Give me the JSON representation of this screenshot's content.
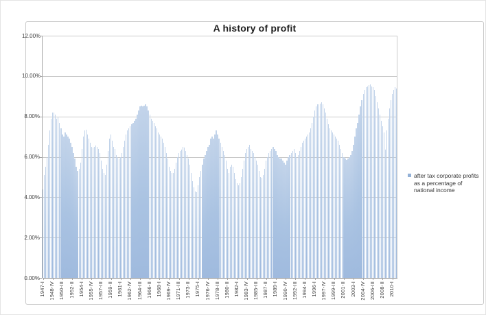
{
  "chart_data": {
    "type": "bar",
    "title": "A history of profit",
    "legend": {
      "label": "after tax corporate profits as a percentage of national income",
      "position": "right"
    },
    "y_axis": {
      "min": 0,
      "max": 12,
      "step": 2,
      "tick_labels": [
        "0.00%",
        "2.00%",
        "4.00%",
        "6.00%",
        "8.00%",
        "10.00%",
        "12.00%"
      ]
    },
    "x_axis": {
      "label_rotation": 90,
      "tick_every_n_bars": 7,
      "tick_labels": [
        "1947-I",
        "1948-IV",
        "1950-III",
        "1952-II",
        "1954-I",
        "1955-IV",
        "1957-III",
        "1959-II",
        "1961-I",
        "1962-IV",
        "1964-III",
        "1966-II",
        "1968-I",
        "1969-IV",
        "1971-III",
        "1973-II",
        "1975-I",
        "1976-IV",
        "1978-III",
        "1980-II",
        "1982-I",
        "1983-IV",
        "1985-III",
        "1987-II",
        "1989-I",
        "1990-IV",
        "1992-III",
        "1994-II",
        "1996-I",
        "1997-IV",
        "1999-III",
        "2001-II",
        "2003-I",
        "2004-IV",
        "2006-III",
        "2008-II",
        "2010-I"
      ]
    },
    "grid": true,
    "ylim": [
      0,
      12
    ],
    "series": [
      {
        "name": "after tax corporate profits as a percentage of national income",
        "first_quarter": "1947-I",
        "last_quarter": "2010-IV",
        "unit": "percent",
        "values": [
          4.4,
          5.1,
          5.5,
          6.0,
          6.6,
          7.3,
          7.9,
          8.2,
          8.2,
          8.1,
          7.9,
          8.0,
          7.7,
          7.4,
          7.1,
          7.0,
          7.2,
          7.1,
          7.0,
          6.9,
          6.7,
          6.5,
          6.2,
          5.9,
          5.5,
          5.3,
          5.4,
          5.7,
          6.4,
          7.0,
          7.3,
          7.35,
          7.1,
          6.9,
          6.7,
          6.5,
          6.45,
          6.5,
          6.55,
          6.5,
          6.4,
          6.2,
          5.8,
          5.4,
          5.2,
          5.1,
          5.6,
          6.3,
          6.9,
          7.1,
          6.8,
          6.5,
          6.4,
          6.1,
          6.0,
          5.9,
          6.0,
          6.2,
          6.5,
          6.8,
          7.1,
          7.3,
          7.4,
          7.5,
          7.6,
          7.7,
          7.8,
          7.9,
          8.1,
          8.3,
          8.5,
          8.55,
          8.5,
          8.55,
          8.6,
          8.5,
          8.3,
          8.1,
          7.9,
          7.8,
          7.7,
          7.5,
          7.4,
          7.2,
          7.1,
          7.0,
          6.9,
          6.7,
          6.5,
          6.2,
          5.9,
          5.5,
          5.3,
          5.2,
          5.2,
          5.4,
          5.7,
          6.0,
          6.2,
          6.3,
          6.35,
          6.5,
          6.45,
          6.3,
          6.1,
          5.9,
          5.6,
          5.2,
          4.8,
          4.5,
          4.3,
          4.25,
          4.6,
          5.0,
          5.3,
          5.6,
          5.9,
          6.1,
          6.3,
          6.5,
          6.6,
          6.9,
          7.0,
          6.9,
          7.1,
          7.3,
          7.1,
          6.9,
          6.7,
          6.5,
          6.3,
          6.1,
          5.8,
          5.4,
          5.2,
          5.5,
          5.6,
          5.5,
          5.2,
          4.9,
          4.7,
          4.6,
          4.7,
          5.0,
          5.4,
          5.8,
          6.2,
          6.4,
          6.5,
          6.6,
          6.4,
          6.3,
          6.2,
          6.0,
          5.8,
          5.6,
          5.3,
          5.0,
          4.95,
          5.1,
          5.4,
          5.8,
          6.0,
          6.2,
          6.3,
          6.4,
          6.5,
          6.4,
          6.3,
          6.1,
          6.0,
          5.9,
          5.9,
          5.8,
          5.7,
          5.6,
          5.8,
          6.0,
          6.1,
          6.2,
          6.3,
          6.4,
          6.2,
          6.0,
          6.1,
          6.3,
          6.5,
          6.7,
          6.8,
          6.9,
          7.0,
          7.1,
          7.2,
          7.4,
          7.7,
          8.0,
          8.3,
          8.5,
          8.6,
          8.6,
          8.65,
          8.7,
          8.6,
          8.4,
          8.2,
          7.9,
          7.6,
          7.4,
          7.3,
          7.2,
          7.1,
          7.0,
          6.9,
          6.8,
          6.6,
          6.4,
          6.2,
          6.0,
          5.9,
          5.85,
          5.9,
          6.0,
          6.1,
          6.3,
          6.6,
          7.0,
          7.4,
          7.7,
          8.1,
          8.5,
          8.8,
          9.1,
          9.3,
          9.45,
          9.5,
          9.55,
          9.6,
          9.5,
          9.45,
          9.3,
          9.0,
          8.7,
          8.4,
          8.1,
          7.8,
          7.5,
          7.2,
          6.35,
          7.3,
          7.9,
          8.4,
          8.8,
          9.1,
          9.3,
          9.45,
          9.4
        ]
      }
    ],
    "colors": {
      "bar_fill": "#aac3e2",
      "legend_marker": "#93b1d7",
      "gridline": "#c9c9c9",
      "axis_line": "#9e9e9e",
      "axis_text": "#3d3d3d",
      "title_text": "#1f1f1f",
      "frame_border": "#c9c9c9",
      "background": "#ffffff"
    }
  }
}
